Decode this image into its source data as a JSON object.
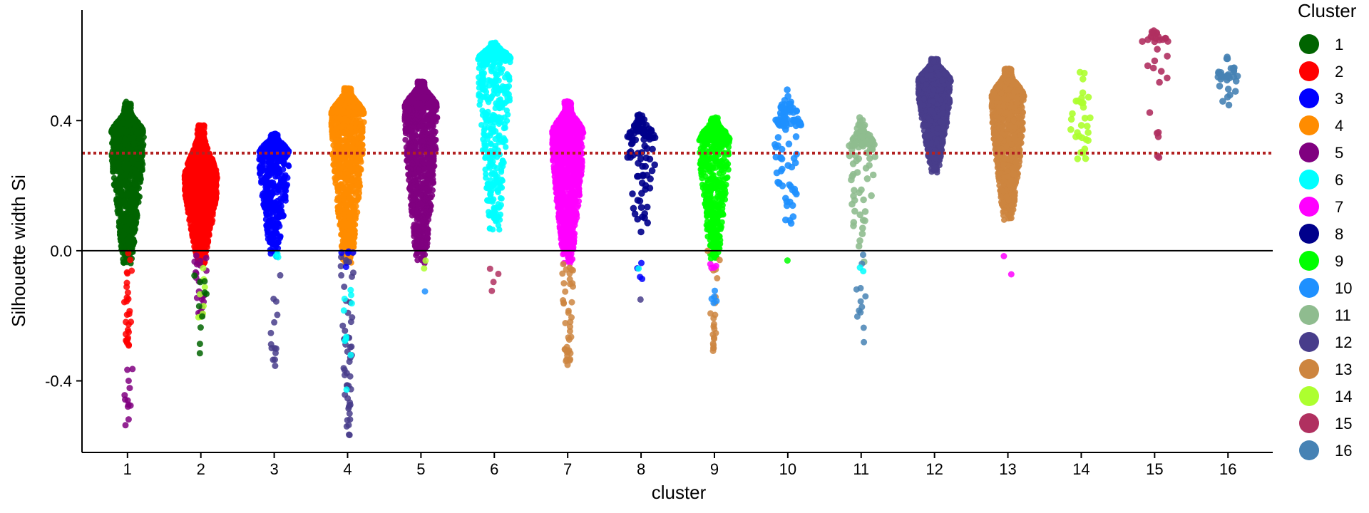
{
  "chart_data": {
    "type": "scatter",
    "subtype": "beeswarm",
    "title": "",
    "xlabel": "cluster",
    "ylabel": "Silhouette width Si",
    "categories": [
      "1",
      "2",
      "3",
      "4",
      "5",
      "6",
      "7",
      "8",
      "9",
      "10",
      "11",
      "12",
      "13",
      "14",
      "15",
      "16"
    ],
    "yticks": [
      "-0.4",
      "0.0",
      "0.4"
    ],
    "ylim": [
      -0.62,
      0.74
    ],
    "zero_line": 0.0,
    "reference_line": {
      "value": 0.3,
      "style": "dotted",
      "color": "#b22222"
    },
    "grid": false,
    "legend": {
      "title": "Cluster",
      "position": "right",
      "entries": [
        "1",
        "2",
        "3",
        "4",
        "5",
        "6",
        "7",
        "8",
        "9",
        "10",
        "11",
        "12",
        "13",
        "14",
        "15",
        "16"
      ]
    },
    "colors": {
      "1": "#006400",
      "2": "#ff0000",
      "3": "#0000ff",
      "4": "#ff8c00",
      "5": "#800080",
      "6": "#00ffff",
      "7": "#ff00ff",
      "8": "#00008b",
      "9": "#00ff00",
      "10": "#1e90ff",
      "11": "#8fbc8f",
      "12": "#483d8b",
      "13": "#cd853f",
      "14": "#adff2f",
      "15": "#b03060",
      "16": "#4682b4"
    },
    "series": [
      {
        "cluster": "1",
        "min": -0.54,
        "max": 0.46,
        "body_top": 0.44,
        "body_bottom": 0.0,
        "mode": 0.36,
        "max_halfwidth": 0.45,
        "count": "large"
      },
      {
        "cluster": "2",
        "min": -0.33,
        "max": 0.39,
        "body_top": 0.38,
        "body_bottom": 0.0,
        "mode": 0.22,
        "max_halfwidth": 0.45,
        "count": "large"
      },
      {
        "cluster": "3",
        "min": -0.36,
        "max": 0.36,
        "body_top": 0.36,
        "body_bottom": 0.02,
        "mode": 0.3,
        "max_halfwidth": 0.42,
        "count": "medium"
      },
      {
        "cluster": "4",
        "min": -0.57,
        "max": 0.5,
        "body_top": 0.5,
        "body_bottom": 0.0,
        "mode": 0.42,
        "max_halfwidth": 0.45,
        "count": "large"
      },
      {
        "cluster": "5",
        "min": -0.13,
        "max": 0.52,
        "body_top": 0.52,
        "body_bottom": 0.0,
        "mode": 0.44,
        "max_halfwidth": 0.45,
        "count": "large"
      },
      {
        "cluster": "6",
        "min": -0.14,
        "max": 0.64,
        "body_top": 0.64,
        "body_bottom": 0.1,
        "mode": 0.59,
        "max_halfwidth": 0.45,
        "count": "medium"
      },
      {
        "cluster": "7",
        "min": -0.36,
        "max": 0.46,
        "body_top": 0.45,
        "body_bottom": 0.0,
        "mode": 0.36,
        "max_halfwidth": 0.43,
        "count": "large"
      },
      {
        "cluster": "8",
        "min": -0.15,
        "max": 0.42,
        "body_top": 0.42,
        "body_bottom": 0.05,
        "mode": 0.34,
        "max_halfwidth": 0.4,
        "count": "small"
      },
      {
        "cluster": "9",
        "min": -0.31,
        "max": 0.41,
        "body_top": 0.41,
        "body_bottom": 0.01,
        "mode": 0.34,
        "max_halfwidth": 0.42,
        "count": "medium"
      },
      {
        "cluster": "10",
        "min": -0.03,
        "max": 0.5,
        "body_top": 0.5,
        "body_bottom": 0.08,
        "mode": 0.38,
        "max_halfwidth": 0.38,
        "count": "small"
      },
      {
        "cluster": "11",
        "min": -0.33,
        "max": 0.41,
        "body_top": 0.4,
        "body_bottom": 0.0,
        "mode": 0.32,
        "max_halfwidth": 0.38,
        "count": "small"
      },
      {
        "cluster": "12",
        "min": 0.2,
        "max": 0.59,
        "body_top": 0.59,
        "body_bottom": 0.28,
        "mode": 0.52,
        "max_halfwidth": 0.45,
        "count": "large"
      },
      {
        "cluster": "13",
        "min": -0.11,
        "max": 0.56,
        "body_top": 0.56,
        "body_bottom": 0.13,
        "mode": 0.47,
        "max_halfwidth": 0.45,
        "count": "large"
      },
      {
        "cluster": "14",
        "min": 0.27,
        "max": 0.55,
        "body_top": 0.55,
        "body_bottom": 0.27,
        "mode": 0.42,
        "max_halfwidth": 0.32,
        "count": "tiny"
      },
      {
        "cluster": "15",
        "min": 0.16,
        "max": 0.68,
        "body_top": 0.68,
        "body_bottom": 0.27,
        "mode": 0.64,
        "max_halfwidth": 0.38,
        "count": "tiny"
      },
      {
        "cluster": "16",
        "min": 0.44,
        "max": 0.6,
        "body_top": 0.6,
        "body_bottom": 0.44,
        "mode": 0.54,
        "max_halfwidth": 0.28,
        "count": "tiny"
      }
    ],
    "negative_points": {
      "1": [
        {
          "color_cluster": "2",
          "from": -0.3,
          "to": 0.0,
          "n": 28
        },
        {
          "color_cluster": "5",
          "from": -0.54,
          "to": -0.36,
          "n": 12
        }
      ],
      "2": [
        {
          "color_cluster": "5",
          "from": -0.22,
          "to": 0.0,
          "n": 24
        },
        {
          "color_cluster": "14",
          "from": -0.24,
          "to": -0.04,
          "n": 8
        },
        {
          "color_cluster": "1",
          "from": -0.33,
          "to": -0.05,
          "n": 10
        }
      ],
      "3": [
        {
          "color_cluster": "12",
          "from": -0.36,
          "to": 0.0,
          "n": 14
        },
        {
          "color_cluster": "6",
          "from": -0.05,
          "to": 0.0,
          "n": 3
        }
      ],
      "4": [
        {
          "color_cluster": "12",
          "from": -0.57,
          "to": 0.0,
          "n": 50
        },
        {
          "color_cluster": "6",
          "from": -0.45,
          "to": -0.02,
          "n": 10
        },
        {
          "color_cluster": "3",
          "from": -0.1,
          "to": 0.0,
          "n": 5
        }
      ],
      "5": [
        {
          "color_cluster": "14",
          "from": -0.08,
          "to": -0.01,
          "n": 2
        },
        {
          "color_cluster": "10",
          "from": -0.13,
          "to": -0.12,
          "n": 1
        }
      ],
      "6": [
        {
          "color_cluster": "15",
          "from": -0.14,
          "to": -0.04,
          "n": 4
        }
      ],
      "7": [
        {
          "color_cluster": "13",
          "from": -0.36,
          "to": 0.0,
          "n": 40
        }
      ],
      "8": [
        {
          "color_cluster": "3",
          "from": -0.09,
          "to": -0.02,
          "n": 4
        },
        {
          "color_cluster": "6",
          "from": -0.06,
          "to": -0.05,
          "n": 1
        },
        {
          "color_cluster": "12",
          "from": -0.15,
          "to": -0.15,
          "n": 1
        }
      ],
      "9": [
        {
          "color_cluster": "13",
          "from": -0.31,
          "to": 0.0,
          "n": 22
        },
        {
          "color_cluster": "7",
          "from": -0.06,
          "to": -0.02,
          "n": 4
        },
        {
          "color_cluster": "10",
          "from": -0.18,
          "to": -0.05,
          "n": 5
        }
      ],
      "10": [
        {
          "color_cluster": "9",
          "from": -0.03,
          "to": -0.03,
          "n": 1
        }
      ],
      "11": [
        {
          "color_cluster": "16",
          "from": -0.33,
          "to": 0.0,
          "n": 12
        },
        {
          "color_cluster": "6",
          "from": -0.07,
          "to": -0.03,
          "n": 2
        }
      ],
      "13": [
        {
          "color_cluster": "7",
          "from": -0.11,
          "to": -0.01,
          "n": 2
        }
      ]
    }
  }
}
